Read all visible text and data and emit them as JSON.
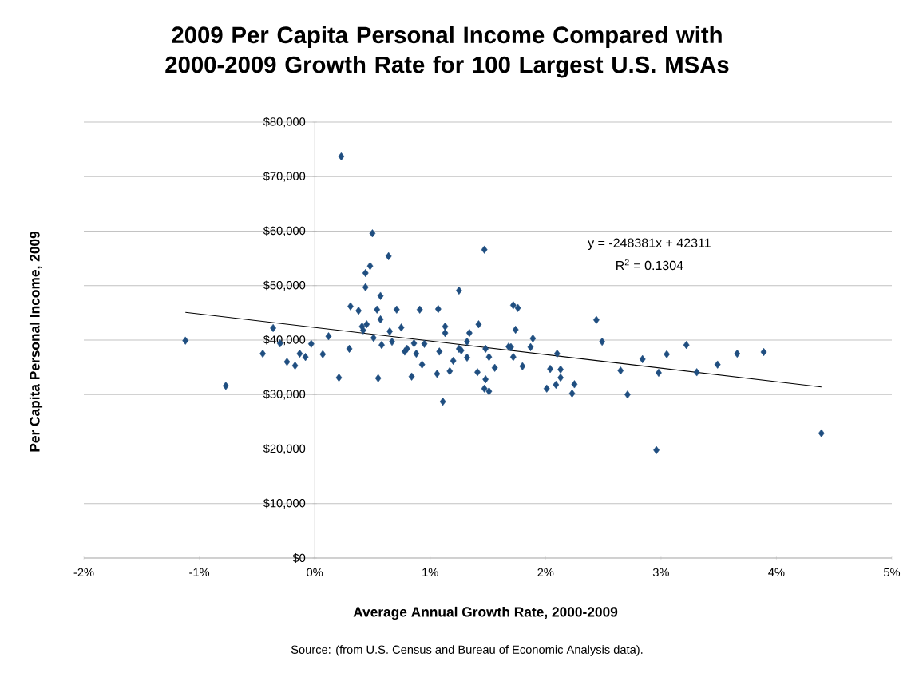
{
  "chart_data": {
    "type": "scatter",
    "title": "2009 Per Capita Personal Income Compared with 2000-2009 Growth Rate for 100 Largest U.S. MSAs",
    "xlabel": "Average Annual  Growth Rate, 2000-2009",
    "ylabel": "Per Capita Personal Income, 2009",
    "annotations": [
      "y = -248381x + 42311",
      "R$^{2}$ = 0.1304",
      "Source: (from U.S. Census and Bureau of Economic Analysis data)."
    ],
    "xlim": [
      -2,
      5
    ],
    "xticks": [
      {
        "value": -2,
        "label": "-2%"
      },
      {
        "value": -1,
        "label": "-1%"
      },
      {
        "value": 0,
        "label": "0%"
      },
      {
        "value": 1,
        "label": "1%"
      },
      {
        "value": 2,
        "label": "2%"
      },
      {
        "value": 3,
        "label": "3%"
      },
      {
        "value": 4,
        "label": "4%"
      },
      {
        "value": 5,
        "label": "5%"
      }
    ],
    "ylim": [
      0,
      80000
    ],
    "yticks": [
      {
        "value": 0,
        "label": "$0"
      },
      {
        "value": 10000,
        "label": "$10,000"
      },
      {
        "value": 20000,
        "label": "$20,000"
      },
      {
        "value": 30000,
        "label": "$30,000"
      },
      {
        "value": 40000,
        "label": "$40,000"
      },
      {
        "value": 50000,
        "label": "$50,000"
      },
      {
        "value": 60000,
        "label": "$60,000"
      },
      {
        "value": 70000,
        "label": "$70,000"
      },
      {
        "value": 80000,
        "label": "$80,000"
      }
    ],
    "grid": "y",
    "marker": "diamond",
    "series": [
      {
        "color": "#1f4e80",
        "x": [
          -1.12,
          -0.77,
          -0.45,
          -0.36,
          -0.3,
          -0.24,
          -0.17,
          -0.13,
          -0.08,
          -0.03,
          0.07,
          0.12,
          0.21,
          0.23,
          0.3,
          0.31,
          0.38,
          0.41,
          0.42,
          0.44,
          0.44,
          0.45,
          0.48,
          0.5,
          0.51,
          0.54,
          0.55,
          0.57,
          0.57,
          0.58,
          0.64,
          0.65,
          0.67,
          0.71,
          0.75,
          0.78,
          0.8,
          0.86,
          0.88,
          0.91,
          0.84,
          0.93,
          0.95,
          1.06,
          1.07,
          1.08,
          1.11,
          1.13,
          1.13,
          1.17,
          1.2,
          1.25,
          1.25,
          1.27,
          1.32,
          1.32,
          1.34,
          1.41,
          1.42,
          1.47,
          1.48,
          1.48,
          1.47,
          1.51,
          1.51,
          1.56,
          1.68,
          1.72,
          1.7,
          1.72,
          1.76,
          1.74,
          1.8,
          1.87,
          1.89,
          2.01,
          2.04,
          2.1,
          2.09,
          2.13,
          2.13,
          2.23,
          2.25,
          2.44,
          2.49,
          2.65,
          2.71,
          2.84,
          2.96,
          2.98,
          3.05,
          3.22,
          3.31,
          3.49,
          3.66,
          3.89,
          4.39
        ],
        "values": [
          39900,
          31600,
          37500,
          42200,
          39400,
          36000,
          35300,
          37500,
          36900,
          39300,
          37400,
          40700,
          33100,
          73700,
          38400,
          46200,
          45400,
          42500,
          41800,
          52300,
          49700,
          42900,
          53600,
          59600,
          40400,
          45600,
          33000,
          43800,
          48100,
          39100,
          55400,
          41600,
          39700,
          45600,
          42300,
          37900,
          38400,
          39400,
          37500,
          45600,
          33300,
          35500,
          39300,
          33800,
          45700,
          37900,
          28700,
          42500,
          41300,
          34300,
          36200,
          49100,
          38400,
          38100,
          39700,
          36800,
          41300,
          34100,
          42900,
          56600,
          32800,
          38400,
          31100,
          30600,
          36900,
          34900,
          38800,
          46400,
          38700,
          36900,
          45900,
          41900,
          35200,
          38700,
          40300,
          31100,
          34700,
          37500,
          31800,
          33100,
          34600,
          30200,
          31900,
          43700,
          39700,
          34400,
          30000,
          36500,
          19800,
          34000,
          37400,
          39100,
          34100,
          35500,
          37500,
          37800,
          22900
        ]
      },
      {
        "type": "line",
        "color": "#000000",
        "marker": "none",
        "x": [
          -1.12,
          4.39
        ],
        "values": [
          45100,
          31400
        ]
      }
    ]
  }
}
